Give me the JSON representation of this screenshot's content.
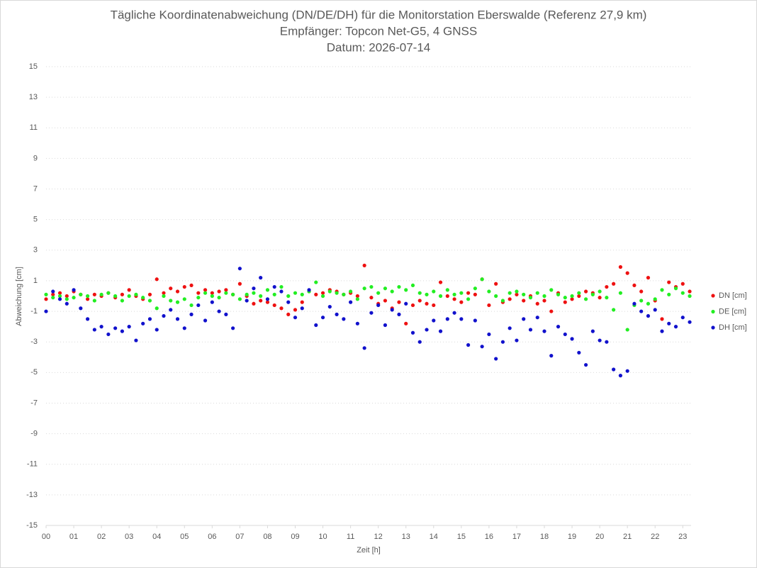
{
  "chart_data": {
    "type": "scatter",
    "title": "Tägliche Koordinatenabweichung (DN/DE/DH) für die Monitorstation Eberswalde (Referenz 27,9 km)",
    "subtitle": [
      "Empfänger: Topcon Net-G5, 4 GNSS",
      "Datum: 2026-07-14"
    ],
    "x_label": "Zeit [h]",
    "y_label": "Abweichung [cm]",
    "xlim": [
      0,
      23.3
    ],
    "xticks": [
      {
        "value": 0,
        "label": "00"
      },
      {
        "value": 1,
        "label": "01"
      },
      {
        "value": 2,
        "label": "02"
      },
      {
        "value": 3,
        "label": "03"
      },
      {
        "value": 4,
        "label": "04"
      },
      {
        "value": 5,
        "label": "05"
      },
      {
        "value": 6,
        "label": "06"
      },
      {
        "value": 7,
        "label": "07"
      },
      {
        "value": 8,
        "label": "08"
      },
      {
        "value": 9,
        "label": "09"
      },
      10,
      11,
      12,
      13,
      14,
      15,
      16,
      17,
      18,
      19,
      20,
      21,
      22,
      23
    ],
    "ylim": [
      -15,
      15
    ],
    "yticks": [
      15,
      13,
      11,
      9,
      7,
      5,
      3,
      1,
      -1,
      -3,
      -5,
      -7,
      -9,
      -11,
      -13,
      -15
    ],
    "grid": true,
    "legend": "right",
    "x": [
      0,
      0.25,
      0.5,
      0.75,
      1,
      1.25,
      1.5,
      1.75,
      2,
      2.25,
      2.5,
      2.75,
      3,
      3.25,
      3.5,
      3.75,
      4,
      4.25,
      4.5,
      4.75,
      5,
      5.25,
      5.5,
      5.75,
      6,
      6.25,
      6.5,
      6.75,
      7,
      7.25,
      7.5,
      7.75,
      8,
      8.25,
      8.5,
      8.75,
      9,
      9.25,
      9.5,
      9.75,
      10,
      10.25,
      10.5,
      10.75,
      11,
      11.25,
      11.5,
      11.75,
      12,
      12.25,
      12.5,
      12.75,
      13,
      13.25,
      13.5,
      13.75,
      14,
      14.25,
      14.5,
      14.75,
      15,
      15.25,
      15.5,
      15.75,
      16,
      16.25,
      16.5,
      16.75,
      17,
      17.25,
      17.5,
      17.75,
      18,
      18.25,
      18.5,
      18.75,
      19,
      19.25,
      19.5,
      19.75,
      20,
      20.25,
      20.5,
      20.75,
      21,
      21.25,
      21.5,
      21.75,
      22,
      22.25,
      22.5,
      22.75,
      23,
      23.25
    ],
    "series": [
      {
        "name": "DN [cm]",
        "color": "#ee1111",
        "values": [
          -0.2,
          0.1,
          0.2,
          0.0,
          0.3,
          0.1,
          -0.2,
          0.1,
          0.0,
          0.2,
          -0.1,
          0.1,
          0.4,
          0.0,
          -0.2,
          0.1,
          1.1,
          0.2,
          0.5,
          0.3,
          0.6,
          0.7,
          0.2,
          0.4,
          0.2,
          0.3,
          0.4,
          0.1,
          0.8,
          0.0,
          -0.5,
          -0.3,
          -0.4,
          -0.6,
          -0.8,
          -1.2,
          -0.9,
          -0.4,
          0.3,
          0.1,
          0.2,
          0.4,
          0.3,
          0.1,
          0.2,
          0.0,
          2.0,
          -0.1,
          -0.5,
          -0.3,
          -0.8,
          -0.4,
          -1.8,
          -0.6,
          -0.3,
          -0.5,
          -0.6,
          0.9,
          0.0,
          -0.2,
          -0.4,
          0.2,
          0.1,
          1.1,
          -0.6,
          0.8,
          -0.4,
          -0.2,
          0.1,
          -0.3,
          0.0,
          -0.5,
          -0.3,
          -1.0,
          0.2,
          -0.4,
          -0.2,
          0.0,
          0.3,
          0.2,
          -0.1,
          0.6,
          0.8,
          1.9,
          1.5,
          0.7,
          0.3,
          1.2,
          -0.3,
          -1.5,
          0.9,
          0.6,
          0.8,
          0.3
        ]
      },
      {
        "name": "DE [cm]",
        "color": "#22ee22",
        "values": [
          0.1,
          -0.1,
          0.0,
          -0.2,
          -0.1,
          0.1,
          0.0,
          -0.3,
          0.1,
          0.2,
          0.0,
          -0.3,
          0.0,
          0.1,
          -0.1,
          -0.3,
          -0.8,
          0.0,
          -0.3,
          -0.4,
          -0.2,
          -0.6,
          -0.1,
          0.2,
          0.0,
          -0.1,
          0.2,
          0.1,
          -0.2,
          0.1,
          0.2,
          0.0,
          0.4,
          0.1,
          0.6,
          0.0,
          0.2,
          0.1,
          0.3,
          0.9,
          0.0,
          0.3,
          0.2,
          0.1,
          0.3,
          -0.2,
          0.5,
          0.6,
          0.2,
          0.5,
          0.3,
          0.6,
          0.4,
          0.7,
          0.2,
          0.1,
          0.3,
          0.0,
          0.4,
          0.1,
          0.2,
          -0.2,
          0.5,
          1.1,
          0.3,
          0.0,
          -0.3,
          0.2,
          0.3,
          0.1,
          -0.1,
          0.2,
          0.0,
          0.4,
          0.1,
          -0.1,
          0.0,
          0.2,
          -0.2,
          0.1,
          0.3,
          -0.1,
          -0.9,
          0.2,
          -2.2,
          -0.6,
          -0.3,
          -0.5,
          -0.2,
          0.4,
          0.1,
          0.5,
          0.2,
          0.0
        ]
      },
      {
        "name": "DH [cm]",
        "color": "#1111cc",
        "values": [
          -1.0,
          0.3,
          -0.2,
          -0.5,
          0.4,
          -0.8,
          -1.5,
          -2.2,
          -2.0,
          -2.5,
          -2.1,
          -2.3,
          -2.0,
          -2.9,
          -1.8,
          -1.5,
          -2.2,
          -1.3,
          -0.9,
          -1.5,
          -2.1,
          -1.2,
          -0.6,
          -1.6,
          -0.4,
          -1.0,
          -1.2,
          -2.1,
          1.8,
          -0.3,
          0.5,
          1.2,
          -0.2,
          0.6,
          0.3,
          -0.4,
          -1.4,
          -0.8,
          0.4,
          -1.9,
          -1.4,
          -0.7,
          -1.2,
          -1.5,
          -0.4,
          -1.8,
          -3.4,
          -1.1,
          -0.6,
          -1.9,
          -0.9,
          -1.2,
          -0.5,
          -2.4,
          -3.0,
          -2.2,
          -1.6,
          -2.3,
          -1.5,
          -1.1,
          -1.5,
          -3.2,
          -1.6,
          -3.3,
          -2.5,
          -4.1,
          -3.0,
          -2.1,
          -2.9,
          -1.5,
          -2.2,
          -1.4,
          -2.3,
          -3.9,
          -2.0,
          -2.5,
          -2.8,
          -3.7,
          -4.5,
          -2.3,
          -2.9,
          -3.0,
          -4.8,
          -5.2,
          -4.9,
          -0.5,
          -1.0,
          -1.3,
          -0.9,
          -2.3,
          -1.8,
          -2.0,
          -1.4,
          -1.7
        ]
      }
    ]
  }
}
